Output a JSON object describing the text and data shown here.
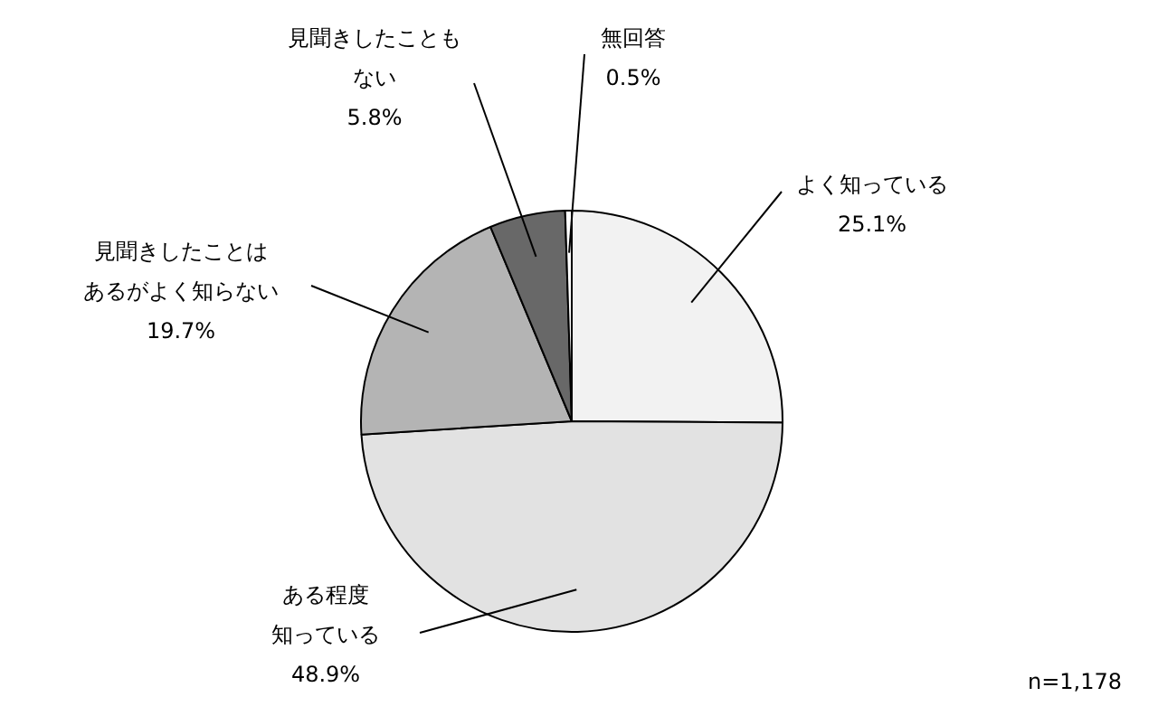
{
  "chart_data": {
    "type": "pie",
    "categories": [
      "よく知っている",
      "ある程度知っている",
      "見聞きしたことはあるがよく知らない",
      "見聞きしたこともない",
      "無回答"
    ],
    "values": [
      25.1,
      48.9,
      19.7,
      5.8,
      0.5
    ],
    "value_labels": [
      "25.1%",
      "48.9%",
      "19.7%",
      "5.8%",
      "0.5%"
    ],
    "colors": [
      "#f2f2f2",
      "#e2e2e2",
      "#b4b4b4",
      "#686868",
      "#ffffff"
    ],
    "legend": false,
    "annotations": [
      "n=1,178"
    ]
  }
}
